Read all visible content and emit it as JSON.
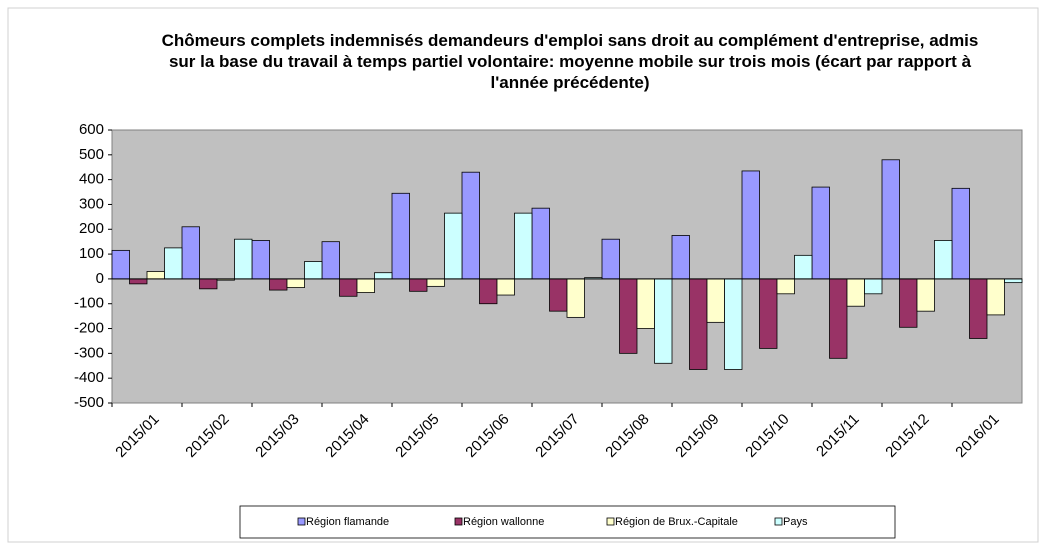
{
  "chart_data": {
    "type": "bar",
    "title": "Chômeurs complets indemnisés demandeurs d'emploi sans droit au complément d'entreprise, admis sur la base du travail à temps partiel volontaire: moyenne mobile sur trois mois (écart par rapport à l'année précédente)",
    "categories": [
      "2015/01",
      "2015/02",
      "2015/03",
      "2015/04",
      "2015/05",
      "2015/06",
      "2015/07",
      "2015/08",
      "2015/09",
      "2015/10",
      "2015/11",
      "2015/12",
      "2016/01"
    ],
    "series": [
      {
        "name": "Région flamande",
        "color": "#9999ff",
        "values": [
          115,
          210,
          155,
          150,
          345,
          430,
          285,
          160,
          175,
          435,
          370,
          480,
          365
        ]
      },
      {
        "name": "Région wallonne",
        "color": "#993366",
        "values": [
          -20,
          -40,
          -45,
          -70,
          -50,
          -100,
          -130,
          -300,
          -365,
          -280,
          -320,
          -195,
          -240
        ]
      },
      {
        "name": "Région de Brux.-Capitale",
        "color": "#ffffcc",
        "values": [
          30,
          -5,
          -35,
          -55,
          -30,
          -65,
          -155,
          -200,
          -175,
          -60,
          -110,
          -130,
          -145
        ]
      },
      {
        "name": "Pays",
        "color": "#ccffff",
        "values": [
          125,
          160,
          70,
          25,
          265,
          265,
          5,
          -340,
          -365,
          95,
          -60,
          155,
          -15
        ]
      }
    ],
    "ylim": [
      -500,
      600
    ],
    "yticks": [
      -500,
      -400,
      -300,
      -200,
      -100,
      0,
      100,
      200,
      300,
      400,
      500,
      600
    ],
    "plot_background": "#c0c0c0",
    "legend": "bottom"
  }
}
